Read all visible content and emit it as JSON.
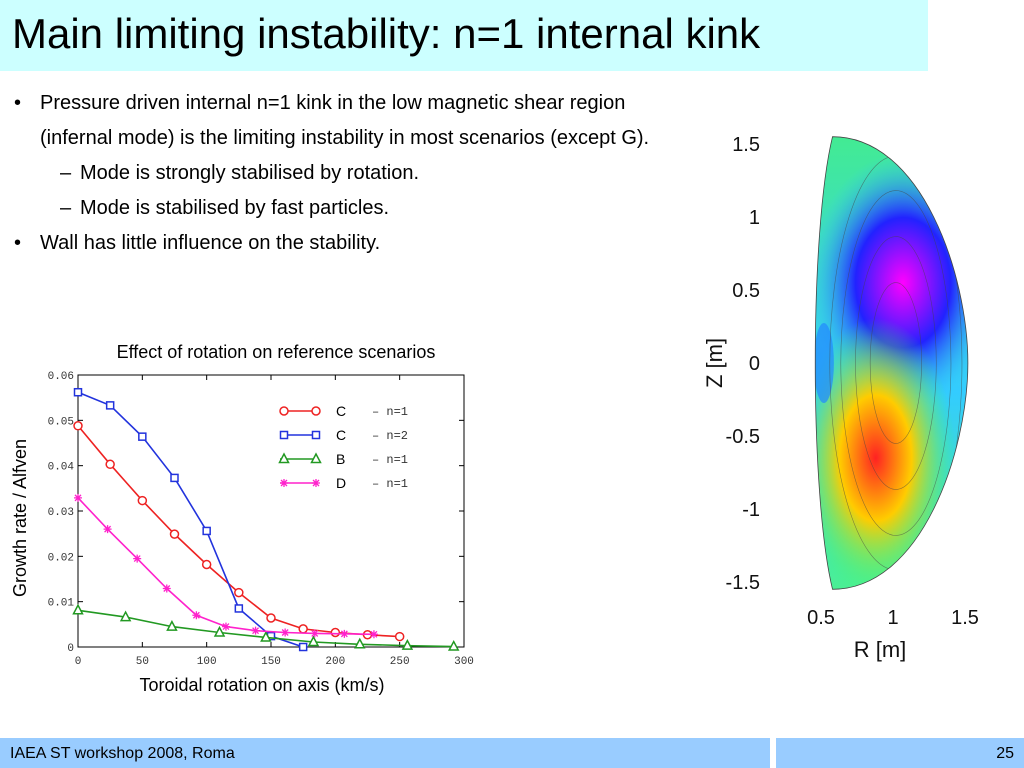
{
  "slide": {
    "title": "Main limiting instability: n=1 internal kink",
    "bullets": [
      {
        "level": 1,
        "marker": "•",
        "text": "Pressure driven internal n=1 kink in the low magnetic shear region (infernal mode) is the limiting instability in most scenarios (except G)."
      },
      {
        "level": 2,
        "marker": "–",
        "text": "Mode is strongly stabilised by rotation."
      },
      {
        "level": 2,
        "marker": "–",
        "text": "Mode is stabilised by fast particles."
      },
      {
        "level": 1,
        "marker": "•",
        "text": "Wall has little influence on the stability."
      }
    ],
    "footer": "IAEA ST workshop 2008, Roma",
    "page_number": "25",
    "colors": {
      "title_bg": "#ccffff",
      "footer_bg": "#99ccff"
    }
  },
  "chart_data": [
    {
      "type": "line",
      "title": "Effect of rotation on reference scenarios",
      "xlabel": "Toroidal rotation on axis (km/s)",
      "ylabel": "Growth rate / Alfven",
      "xlim": [
        0,
        300
      ],
      "ylim": [
        0,
        0.06
      ],
      "xticks": [
        "0",
        "50",
        "100",
        "150",
        "200",
        "250",
        "300"
      ],
      "yticks": [
        "0",
        "0.01",
        "0.02",
        "0.03",
        "0.04",
        "0.05",
        "0.06"
      ],
      "grid": false,
      "legend_position": "top-right",
      "series": [
        {
          "name": "C",
          "suffix": "– n=1",
          "color": "#ee2222",
          "marker": "circle",
          "x": [
            0,
            25,
            50,
            75,
            100,
            125,
            150,
            175,
            200,
            225,
            250
          ],
          "y": [
            0.0488,
            0.0403,
            0.0323,
            0.0249,
            0.0182,
            0.012,
            0.0064,
            0.004,
            0.0032,
            0.0027,
            0.0023
          ]
        },
        {
          "name": "C",
          "suffix": "– n=2",
          "color": "#2233dd",
          "marker": "square",
          "x": [
            0,
            25,
            50,
            75,
            100,
            125,
            150,
            175
          ],
          "y": [
            0.0562,
            0.0533,
            0.0464,
            0.0373,
            0.0256,
            0.0085,
            0.0024,
            0.0
          ]
        },
        {
          "name": "B",
          "suffix": "– n=1",
          "color": "#229922",
          "marker": "triangle",
          "x": [
            0,
            37,
            73,
            110,
            146,
            183,
            219,
            256,
            292
          ],
          "y": [
            0.0081,
            0.0066,
            0.0045,
            0.0032,
            0.0021,
            0.0011,
            0.0006,
            0.0003,
            0.0001
          ]
        },
        {
          "name": "D",
          "suffix": "– n=1",
          "color": "#ff22cc",
          "marker": "star",
          "x": [
            0,
            23,
            46,
            69,
            92,
            115,
            138,
            161,
            184,
            207,
            230
          ],
          "y": [
            0.0329,
            0.026,
            0.0195,
            0.0129,
            0.007,
            0.0045,
            0.0036,
            0.0032,
            0.003,
            0.0029,
            0.0028
          ]
        }
      ]
    },
    {
      "type": "heatmap",
      "xlabel": "R [m]",
      "ylabel": "Z [m]",
      "xlim": [
        0.3,
        1.6
      ],
      "ylim": [
        -1.6,
        1.6
      ],
      "xticks": [
        "0.5",
        "1",
        "1.5"
      ],
      "yticks": [
        "1.5",
        "1",
        "0.5",
        "0",
        "-0.5",
        "-1",
        "-1.5"
      ],
      "colors": {
        "high": "#ff2222",
        "low": "#ff00ff",
        "mid": "#33ff66"
      }
    }
  ]
}
